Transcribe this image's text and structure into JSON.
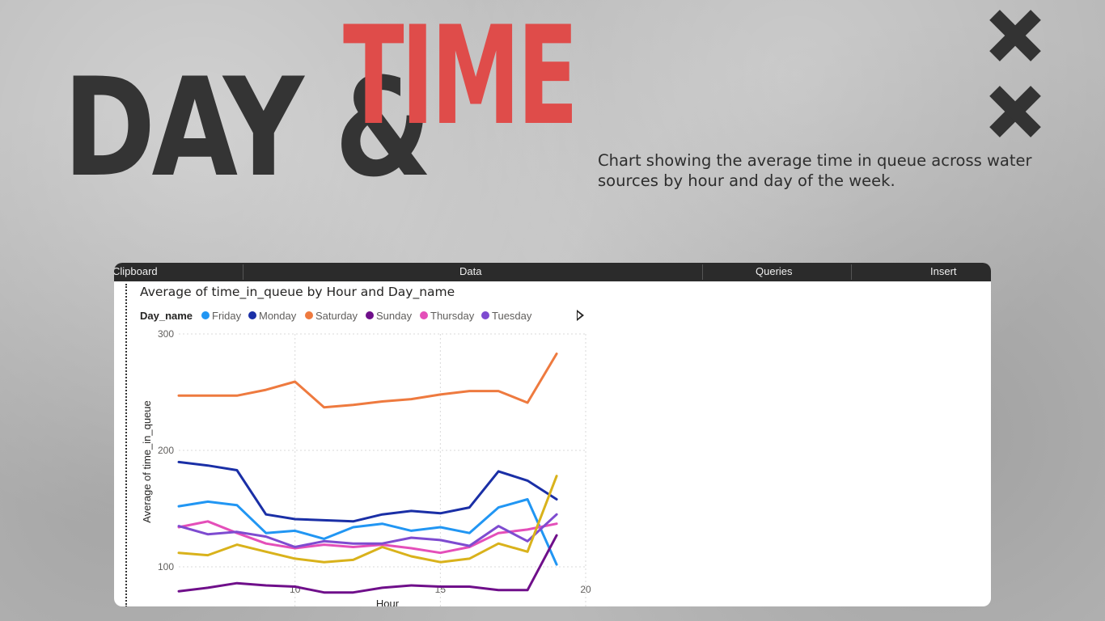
{
  "header": {
    "title_day": "DAY &",
    "title_time": "TIME",
    "description": "Chart showing the average time in queue across water sources by hour and day of the week."
  },
  "ribbon": {
    "items": [
      "Clipboard",
      "Data",
      "Queries",
      "Insert"
    ]
  },
  "colors": {
    "title_dark": "#343434",
    "title_accent": "#df4c4a",
    "Friday": "#2196f3",
    "Monday": "#1a2fa6",
    "Saturday": "#ee7a3f",
    "Sunday": "#6f0f8a",
    "Thursday": "#e44fb9",
    "Tuesday": "#7e4bd0",
    "Wednesday": "#d9b21b"
  },
  "chart_data": {
    "type": "line",
    "title": "Average of time_in_queue by Hour and Day_name",
    "legend_title": "Day_name",
    "legend_position": "top-left",
    "xlabel": "Hour",
    "ylabel": "Average of time_in_queue",
    "xlim": [
      6,
      20
    ],
    "ylim": [
      50,
      300
    ],
    "x_ticks": [
      10,
      15,
      20
    ],
    "y_ticks": [
      100,
      200,
      300
    ],
    "grid": true,
    "x": [
      6,
      7,
      8,
      9,
      10,
      11,
      12,
      13,
      14,
      15,
      16,
      17,
      18,
      19
    ],
    "series": [
      {
        "name": "Saturday",
        "values": [
          247,
          247,
          247,
          252,
          259,
          237,
          239,
          242,
          244,
          248,
          251,
          251,
          241,
          283
        ]
      },
      {
        "name": "Monday",
        "values": [
          190,
          187,
          183,
          145,
          141,
          140,
          139,
          145,
          148,
          146,
          151,
          182,
          174,
          158
        ]
      },
      {
        "name": "Friday",
        "values": [
          152,
          156,
          153,
          129,
          131,
          124,
          134,
          137,
          131,
          134,
          129,
          151,
          158,
          102
        ]
      },
      {
        "name": "Thursday",
        "values": [
          134,
          139,
          129,
          120,
          116,
          119,
          117,
          119,
          116,
          112,
          117,
          129,
          132,
          137
        ]
      },
      {
        "name": "Tuesday",
        "values": [
          135,
          128,
          130,
          126,
          117,
          122,
          120,
          120,
          125,
          123,
          118,
          135,
          122,
          145
        ]
      },
      {
        "name": "",
        "values": [
          112,
          110,
          119,
          113,
          107,
          104,
          106,
          117,
          109,
          104,
          107,
          120,
          113,
          178
        ]
      },
      {
        "name": "Sunday",
        "values": [
          79,
          82,
          86,
          84,
          83,
          78,
          78,
          82,
          84,
          83,
          83,
          80,
          80,
          127
        ]
      }
    ]
  }
}
